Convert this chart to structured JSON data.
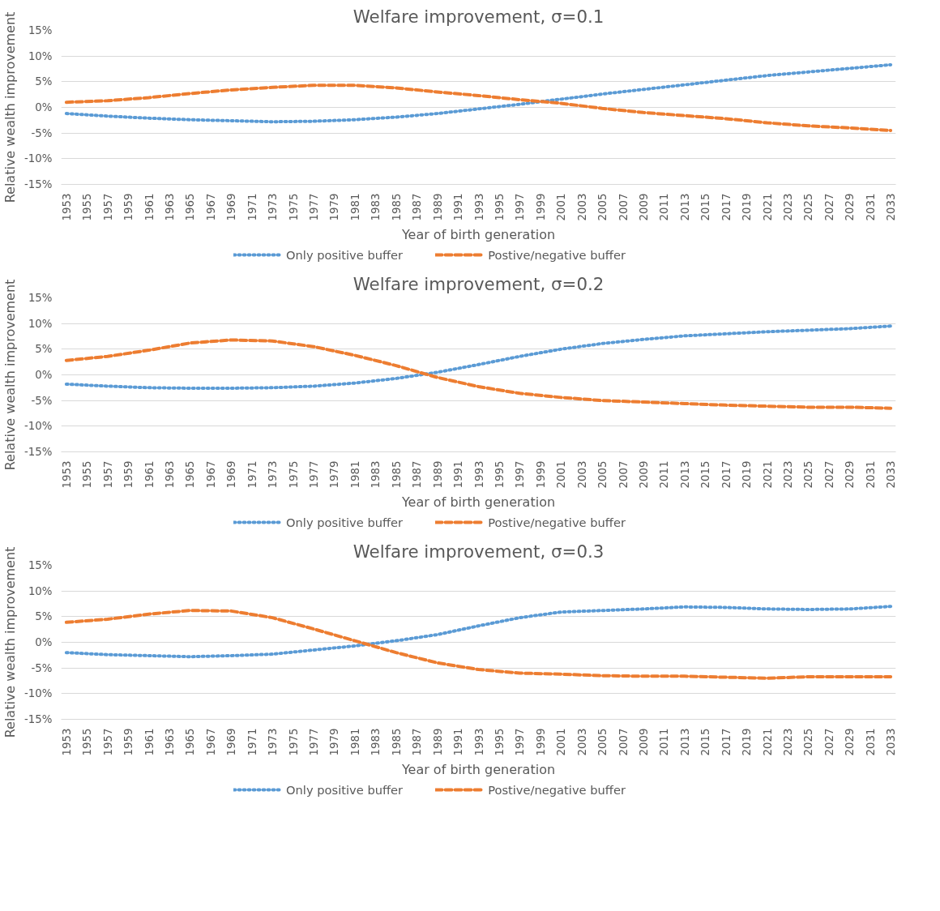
{
  "chart_data": [
    {
      "type": "line",
      "title": "Welfare improvement, σ=0.1",
      "xlabel": "Year of birth generation",
      "ylabel": "Relative wealth improvement",
      "xlim": [
        1952.5,
        2033.5
      ],
      "xticks": [
        1953,
        1955,
        1957,
        1959,
        1961,
        1963,
        1965,
        1967,
        1969,
        1971,
        1973,
        1975,
        1977,
        1979,
        1981,
        1983,
        1985,
        1987,
        1989,
        1991,
        1993,
        1995,
        1997,
        1999,
        2001,
        2003,
        2005,
        2007,
        2009,
        2011,
        2013,
        2015,
        2017,
        2019,
        2021,
        2023,
        2025,
        2027,
        2029,
        2031,
        2033
      ],
      "ylim": [
        -15,
        15
      ],
      "yticks": [
        {
          "value": -15,
          "label": "-15%"
        },
        {
          "value": -10,
          "label": "-10%"
        },
        {
          "value": -5,
          "label": "-5%"
        },
        {
          "value": 0,
          "label": "0%"
        },
        {
          "value": 5,
          "label": "5%"
        },
        {
          "value": 10,
          "label": "10%"
        },
        {
          "value": 15,
          "label": "15%"
        }
      ],
      "grid": "y",
      "legend": "bottom",
      "marker": "none",
      "x": [
        1953,
        1957,
        1961,
        1965,
        1969,
        1973,
        1977,
        1981,
        1985,
        1989,
        1993,
        1997,
        2001,
        2005,
        2009,
        2013,
        2017,
        2021,
        2025,
        2029,
        2033
      ],
      "series": [
        {
          "name": "Only positive buffer",
          "color": "#5b9bd5",
          "line_style": "dotted",
          "values": [
            -1.2,
            -1.7,
            -2.1,
            -2.4,
            -2.6,
            -2.8,
            -2.7,
            -2.4,
            -1.9,
            -1.2,
            -0.3,
            0.6,
            1.6,
            2.6,
            3.5,
            4.4,
            5.3,
            6.2,
            6.9,
            7.6,
            8.3
          ]
        },
        {
          "name": "Postive/negative buffer",
          "color": "#ed7d31",
          "line_style": "dashed",
          "values": [
            1.0,
            1.3,
            1.9,
            2.7,
            3.4,
            3.9,
            4.3,
            4.3,
            3.8,
            3.0,
            2.3,
            1.5,
            0.8,
            -0.2,
            -1.0,
            -1.6,
            -2.2,
            -3.0,
            -3.6,
            -4.0,
            -4.5
          ]
        }
      ]
    },
    {
      "type": "line",
      "title": "Welfare improvement, σ=0.2",
      "xlabel": "Year of birth generation",
      "ylabel": "Relative wealth improvement",
      "xlim": [
        1952.5,
        2033.5
      ],
      "xticks": [
        1953,
        1955,
        1957,
        1959,
        1961,
        1963,
        1965,
        1967,
        1969,
        1971,
        1973,
        1975,
        1977,
        1979,
        1981,
        1983,
        1985,
        1987,
        1989,
        1991,
        1993,
        1995,
        1997,
        1999,
        2001,
        2003,
        2005,
        2007,
        2009,
        2011,
        2013,
        2015,
        2017,
        2019,
        2021,
        2023,
        2025,
        2027,
        2029,
        2031,
        2033
      ],
      "ylim": [
        -15,
        15
      ],
      "yticks": [
        {
          "value": -15,
          "label": "-15%"
        },
        {
          "value": -10,
          "label": "-10%"
        },
        {
          "value": -5,
          "label": "-5%"
        },
        {
          "value": 0,
          "label": "0%"
        },
        {
          "value": 5,
          "label": "5%"
        },
        {
          "value": 10,
          "label": "10%"
        },
        {
          "value": 15,
          "label": "15%"
        }
      ],
      "grid": "y",
      "legend": "bottom",
      "marker": "none",
      "x": [
        1953,
        1957,
        1961,
        1965,
        1969,
        1973,
        1977,
        1981,
        1985,
        1989,
        1993,
        1997,
        2001,
        2005,
        2009,
        2013,
        2017,
        2021,
        2025,
        2029,
        2033
      ],
      "series": [
        {
          "name": "Only positive buffer",
          "color": "#5b9bd5",
          "line_style": "dotted",
          "values": [
            -1.8,
            -2.2,
            -2.5,
            -2.6,
            -2.6,
            -2.5,
            -2.2,
            -1.6,
            -0.7,
            0.5,
            2.0,
            3.6,
            5.0,
            6.1,
            6.9,
            7.6,
            8.0,
            8.4,
            8.7,
            9.0,
            9.5
          ]
        },
        {
          "name": "Postive/negative buffer",
          "color": "#ed7d31",
          "line_style": "dashed",
          "values": [
            2.8,
            3.6,
            4.8,
            6.2,
            6.8,
            6.6,
            5.5,
            3.8,
            1.8,
            -0.5,
            -2.3,
            -3.6,
            -4.4,
            -5.0,
            -5.3,
            -5.6,
            -5.9,
            -6.1,
            -6.3,
            -6.3,
            -6.5
          ]
        }
      ]
    },
    {
      "type": "line",
      "title": "Welfare improvement, σ=0.3",
      "xlabel": "Year of birth generation",
      "ylabel": "Relative wealth improvement",
      "xlim": [
        1952.5,
        2033.5
      ],
      "xticks": [
        1953,
        1955,
        1957,
        1959,
        1961,
        1963,
        1965,
        1967,
        1969,
        1971,
        1973,
        1975,
        1977,
        1979,
        1981,
        1983,
        1985,
        1987,
        1989,
        1991,
        1993,
        1995,
        1997,
        1999,
        2001,
        2003,
        2005,
        2007,
        2009,
        2011,
        2013,
        2015,
        2017,
        2019,
        2021,
        2023,
        2025,
        2027,
        2029,
        2031,
        2033
      ],
      "ylim": [
        -15,
        15
      ],
      "yticks": [
        {
          "value": -15,
          "label": "-15%"
        },
        {
          "value": -10,
          "label": "-10%"
        },
        {
          "value": -5,
          "label": "-5%"
        },
        {
          "value": 0,
          "label": "0%"
        },
        {
          "value": 5,
          "label": "5%"
        },
        {
          "value": 10,
          "label": "10%"
        },
        {
          "value": 15,
          "label": "15%"
        }
      ],
      "grid": "y",
      "legend": "bottom",
      "marker": "none",
      "x": [
        1953,
        1957,
        1961,
        1965,
        1969,
        1973,
        1977,
        1981,
        1985,
        1989,
        1993,
        1997,
        2001,
        2005,
        2009,
        2013,
        2017,
        2021,
        2025,
        2029,
        2033
      ],
      "series": [
        {
          "name": "Only positive buffer",
          "color": "#5b9bd5",
          "line_style": "dotted",
          "values": [
            -2.0,
            -2.4,
            -2.6,
            -2.8,
            -2.6,
            -2.3,
            -1.5,
            -0.7,
            0.3,
            1.5,
            3.2,
            4.8,
            5.9,
            6.2,
            6.5,
            6.9,
            6.8,
            6.5,
            6.4,
            6.5,
            7.0
          ]
        },
        {
          "name": "Postive/negative buffer",
          "color": "#ed7d31",
          "line_style": "dashed",
          "values": [
            3.9,
            4.5,
            5.5,
            6.2,
            6.1,
            4.8,
            2.6,
            0.3,
            -2.0,
            -4.0,
            -5.3,
            -6.0,
            -6.2,
            -6.5,
            -6.6,
            -6.6,
            -6.8,
            -7.0,
            -6.7,
            -6.7,
            -6.7
          ]
        }
      ]
    }
  ]
}
